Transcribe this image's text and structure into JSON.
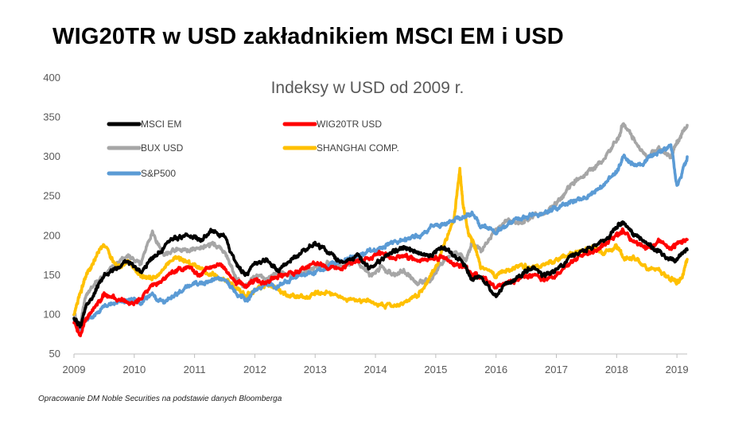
{
  "headline": "WIG20TR w USD zakładnikiem MSCI EM i USD",
  "source_note": "Opracowanie DM Noble Securities na podstawie danych Bloomberga",
  "chart_data": {
    "type": "line",
    "title": "Indeksy w USD od 2009 r.",
    "xlabel": "",
    "ylabel": "",
    "xlim": [
      2009.0,
      2019.17
    ],
    "ylim": [
      50,
      400
    ],
    "yticks": [
      50,
      100,
      150,
      200,
      250,
      300,
      350,
      400
    ],
    "xticks": [
      2009,
      2010,
      2011,
      2012,
      2013,
      2014,
      2015,
      2016,
      2017,
      2018,
      2019
    ],
    "grid": false,
    "legend_position": "top-left",
    "series": [
      {
        "name": "MSCI EM",
        "color": "#000000",
        "x": [
          2009.0,
          2009.1,
          2009.2,
          2009.35,
          2009.5,
          2009.7,
          2009.9,
          2010.1,
          2010.3,
          2010.5,
          2010.7,
          2010.9,
          2011.1,
          2011.3,
          2011.5,
          2011.7,
          2011.85,
          2012.0,
          2012.2,
          2012.4,
          2012.6,
          2012.8,
          2013.0,
          2013.2,
          2013.45,
          2013.7,
          2013.9,
          2014.1,
          2014.3,
          2014.5,
          2014.7,
          2014.9,
          2015.1,
          2015.3,
          2015.5,
          2015.6,
          2015.75,
          2016.0,
          2016.2,
          2016.4,
          2016.6,
          2016.8,
          2017.0,
          2017.2,
          2017.4,
          2017.6,
          2017.8,
          2018.0,
          2018.1,
          2018.3,
          2018.5,
          2018.7,
          2018.9,
          2019.0,
          2019.17
        ],
        "values": [
          95,
          85,
          110,
          130,
          148,
          160,
          168,
          155,
          170,
          185,
          198,
          200,
          195,
          205,
          200,
          160,
          150,
          165,
          170,
          155,
          170,
          180,
          190,
          178,
          165,
          175,
          160,
          172,
          180,
          185,
          178,
          175,
          185,
          175,
          160,
          145,
          148,
          125,
          140,
          150,
          160,
          150,
          155,
          170,
          178,
          185,
          195,
          210,
          218,
          200,
          190,
          180,
          170,
          172,
          182
        ]
      },
      {
        "name": "WIG20TR USD",
        "color": "#ff0000",
        "x": [
          2009.0,
          2009.1,
          2009.2,
          2009.35,
          2009.5,
          2009.7,
          2009.9,
          2010.1,
          2010.3,
          2010.5,
          2010.7,
          2010.9,
          2011.1,
          2011.3,
          2011.5,
          2011.7,
          2011.85,
          2012.0,
          2012.2,
          2012.4,
          2012.6,
          2012.8,
          2013.0,
          2013.2,
          2013.45,
          2013.7,
          2013.9,
          2014.1,
          2014.3,
          2014.5,
          2014.7,
          2014.9,
          2015.1,
          2015.3,
          2015.5,
          2015.6,
          2015.75,
          2016.0,
          2016.2,
          2016.4,
          2016.6,
          2016.8,
          2017.0,
          2017.2,
          2017.4,
          2017.6,
          2017.8,
          2018.0,
          2018.1,
          2018.3,
          2018.5,
          2018.7,
          2018.9,
          2019.0,
          2019.17
        ],
        "values": [
          90,
          75,
          95,
          110,
          125,
          120,
          115,
          120,
          135,
          145,
          155,
          160,
          150,
          165,
          160,
          140,
          138,
          145,
          140,
          150,
          152,
          158,
          165,
          160,
          160,
          168,
          172,
          178,
          170,
          175,
          168,
          170,
          172,
          165,
          160,
          150,
          148,
          135,
          140,
          145,
          150,
          145,
          150,
          165,
          175,
          180,
          190,
          200,
          205,
          190,
          185,
          192,
          185,
          190,
          195
        ]
      },
      {
        "name": "BUX USD",
        "color": "#a6a6a6",
        "x": [
          2009.0,
          2009.1,
          2009.2,
          2009.35,
          2009.5,
          2009.7,
          2009.9,
          2010.1,
          2010.3,
          2010.5,
          2010.7,
          2010.9,
          2011.1,
          2011.3,
          2011.5,
          2011.7,
          2011.85,
          2012.0,
          2012.2,
          2012.4,
          2012.6,
          2012.8,
          2013.0,
          2013.2,
          2013.45,
          2013.7,
          2013.9,
          2014.1,
          2014.3,
          2014.5,
          2014.7,
          2014.9,
          2015.1,
          2015.3,
          2015.5,
          2015.6,
          2015.75,
          2016.0,
          2016.2,
          2016.4,
          2016.6,
          2016.8,
          2017.0,
          2017.2,
          2017.4,
          2017.6,
          2017.8,
          2018.0,
          2018.1,
          2018.3,
          2018.5,
          2018.7,
          2018.9,
          2019.0,
          2019.17
        ],
        "values": [
          100,
          85,
          125,
          140,
          150,
          165,
          175,
          165,
          205,
          175,
          185,
          180,
          185,
          190,
          180,
          145,
          135,
          150,
          145,
          155,
          150,
          155,
          160,
          165,
          160,
          170,
          150,
          160,
          150,
          155,
          140,
          145,
          165,
          180,
          170,
          190,
          180,
          210,
          220,
          215,
          225,
          230,
          240,
          260,
          275,
          285,
          300,
          320,
          340,
          320,
          300,
          310,
          300,
          320,
          340
        ]
      },
      {
        "name": "SHANGHAI COMP.",
        "color": "#ffc000",
        "x": [
          2009.0,
          2009.1,
          2009.2,
          2009.35,
          2009.5,
          2009.7,
          2009.9,
          2010.1,
          2010.3,
          2010.5,
          2010.7,
          2010.9,
          2011.1,
          2011.3,
          2011.5,
          2011.7,
          2011.85,
          2012.0,
          2012.2,
          2012.4,
          2012.6,
          2012.8,
          2013.0,
          2013.2,
          2013.45,
          2013.7,
          2013.9,
          2014.1,
          2014.3,
          2014.5,
          2014.7,
          2014.9,
          2015.1,
          2015.3,
          2015.4,
          2015.45,
          2015.55,
          2015.65,
          2015.75,
          2016.0,
          2016.2,
          2016.4,
          2016.6,
          2016.8,
          2017.0,
          2017.2,
          2017.4,
          2017.6,
          2017.8,
          2018.0,
          2018.1,
          2018.3,
          2018.5,
          2018.7,
          2018.9,
          2019.0,
          2019.1,
          2019.17
        ],
        "values": [
          100,
          125,
          150,
          170,
          190,
          160,
          165,
          150,
          145,
          160,
          175,
          165,
          160,
          150,
          145,
          135,
          125,
          128,
          140,
          130,
          125,
          120,
          128,
          125,
          120,
          118,
          115,
          112,
          110,
          115,
          125,
          145,
          180,
          220,
          285,
          240,
          200,
          185,
          160,
          150,
          158,
          162,
          160,
          165,
          170,
          175,
          180,
          185,
          178,
          185,
          175,
          170,
          160,
          155,
          145,
          140,
          150,
          170
        ]
      },
      {
        "name": "S&P500",
        "color": "#5b9bd5",
        "x": [
          2009.0,
          2009.1,
          2009.2,
          2009.35,
          2009.5,
          2009.7,
          2009.9,
          2010.1,
          2010.3,
          2010.5,
          2010.7,
          2010.9,
          2011.1,
          2011.3,
          2011.5,
          2011.7,
          2011.85,
          2012.0,
          2012.2,
          2012.4,
          2012.6,
          2012.8,
          2013.0,
          2013.2,
          2013.45,
          2013.7,
          2013.9,
          2014.1,
          2014.3,
          2014.5,
          2014.7,
          2014.9,
          2015.1,
          2015.3,
          2015.5,
          2015.6,
          2015.75,
          2016.0,
          2016.2,
          2016.4,
          2016.6,
          2016.8,
          2017.0,
          2017.2,
          2017.4,
          2017.6,
          2017.8,
          2018.0,
          2018.1,
          2018.3,
          2018.5,
          2018.7,
          2018.9,
          2019.0,
          2019.17
        ],
        "values": [
          95,
          80,
          95,
          100,
          110,
          115,
          120,
          115,
          125,
          115,
          125,
          135,
          140,
          145,
          145,
          125,
          120,
          130,
          140,
          135,
          145,
          150,
          155,
          160,
          168,
          175,
          180,
          185,
          190,
          195,
          200,
          210,
          215,
          220,
          225,
          228,
          212,
          205,
          215,
          220,
          225,
          230,
          235,
          240,
          245,
          255,
          265,
          280,
          300,
          290,
          295,
          305,
          315,
          260,
          300
        ]
      }
    ]
  }
}
